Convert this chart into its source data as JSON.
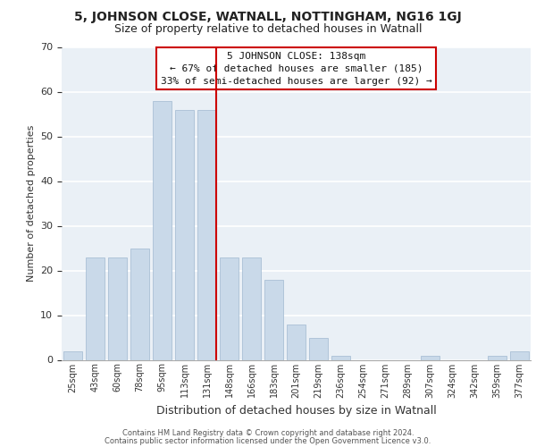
{
  "title": "5, JOHNSON CLOSE, WATNALL, NOTTINGHAM, NG16 1GJ",
  "subtitle": "Size of property relative to detached houses in Watnall",
  "xlabel": "Distribution of detached houses by size in Watnall",
  "ylabel": "Number of detached properties",
  "bar_labels": [
    "25sqm",
    "43sqm",
    "60sqm",
    "78sqm",
    "95sqm",
    "113sqm",
    "131sqm",
    "148sqm",
    "166sqm",
    "183sqm",
    "201sqm",
    "219sqm",
    "236sqm",
    "254sqm",
    "271sqm",
    "289sqm",
    "307sqm",
    "324sqm",
    "342sqm",
    "359sqm",
    "377sqm"
  ],
  "bar_values": [
    2,
    23,
    23,
    25,
    58,
    56,
    56,
    23,
    23,
    18,
    8,
    5,
    1,
    0,
    0,
    0,
    1,
    0,
    0,
    1,
    2
  ],
  "bar_color": "#c9d9e9",
  "bar_edge_color": "#a0b8d0",
  "vline_index": 6,
  "vline_color": "#cc0000",
  "ylim": [
    0,
    70
  ],
  "yticks": [
    0,
    10,
    20,
    30,
    40,
    50,
    60,
    70
  ],
  "annotation_title": "5 JOHNSON CLOSE: 138sqm",
  "annotation_line1": "← 67% of detached houses are smaller (185)",
  "annotation_line2": "33% of semi-detached houses are larger (92) →",
  "annotation_box_color": "#ffffff",
  "annotation_box_edge": "#cc0000",
  "footer1": "Contains HM Land Registry data © Crown copyright and database right 2024.",
  "footer2": "Contains public sector information licensed under the Open Government Licence v3.0.",
  "bg_color": "#eaf0f6",
  "grid_color": "#ffffff",
  "title_fontsize": 10,
  "subtitle_fontsize": 9,
  "ylabel_fontsize": 8,
  "xlabel_fontsize": 9,
  "tick_fontsize": 7,
  "ytick_fontsize": 8,
  "annotation_fontsize": 8,
  "footer_fontsize": 6
}
